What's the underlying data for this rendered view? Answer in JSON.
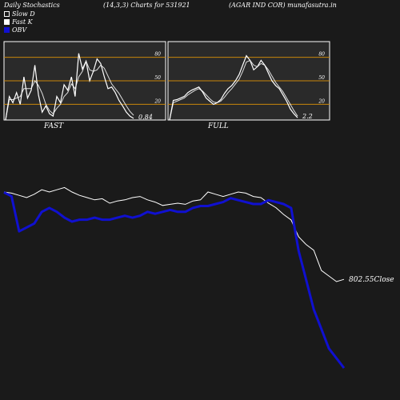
{
  "header": {
    "title": "Daily Stochastics",
    "params": "(14,3,3) Charts for 531921",
    "company_site": "(AGAR IND COR) munafasutra.in"
  },
  "legend": {
    "slow_d": "Slow  D",
    "fast_k": "Fast K",
    "obv": "OBV"
  },
  "colors": {
    "background": "#1a1a1a",
    "stoch_line": "#ffffff",
    "level_line": "#c8860a",
    "obv_line": "#1010d0",
    "close_line": "#ffffff"
  },
  "chart_data": [
    {
      "type": "line",
      "name": "fast-stochastics",
      "panel_label": "FAST",
      "ylim": [
        0,
        100
      ],
      "yticks": [
        20,
        50,
        80
      ],
      "last_value_label": "0.84",
      "series": [
        {
          "name": "Fast K",
          "values": [
            0,
            30,
            22,
            35,
            20,
            55,
            28,
            38,
            70,
            32,
            10,
            18,
            8,
            5,
            30,
            22,
            45,
            38,
            55,
            30,
            85,
            65,
            75,
            50,
            62,
            78,
            72,
            55,
            40,
            42,
            35,
            25,
            18,
            10,
            5,
            2
          ]
        },
        {
          "name": "Slow  D",
          "values": [
            0,
            26,
            26,
            28,
            30,
            40,
            40,
            40,
            50,
            44,
            34,
            20,
            12,
            8,
            15,
            20,
            30,
            35,
            46,
            40,
            55,
            62,
            75,
            64,
            62,
            64,
            70,
            66,
            56,
            46,
            40,
            34,
            26,
            18,
            11,
            6
          ]
        }
      ]
    },
    {
      "type": "line",
      "name": "full-stochastics",
      "panel_label": "FULL",
      "ylim": [
        0,
        100
      ],
      "yticks": [
        20,
        50,
        80
      ],
      "last_value_label": "2.2",
      "series": [
        {
          "name": "Fast K",
          "values": [
            0,
            25,
            26,
            28,
            30,
            35,
            38,
            40,
            42,
            36,
            28,
            24,
            20,
            22,
            26,
            34,
            40,
            44,
            50,
            58,
            70,
            82,
            76,
            64,
            68,
            76,
            70,
            60,
            50,
            44,
            40,
            32,
            24,
            14,
            8,
            3
          ]
        },
        {
          "name": "Slow  D",
          "values": [
            0,
            22,
            24,
            26,
            28,
            32,
            35,
            38,
            40,
            37,
            32,
            27,
            23,
            22,
            24,
            29,
            35,
            40,
            46,
            52,
            62,
            74,
            76,
            70,
            68,
            72,
            70,
            64,
            56,
            48,
            42,
            36,
            28,
            20,
            12,
            5
          ]
        }
      ]
    },
    {
      "type": "line",
      "name": "price-and-obv",
      "close_label": "802.55Close",
      "series": [
        {
          "name": "Close",
          "values": [
            0.8,
            0.79,
            0.77,
            0.75,
            0.78,
            0.82,
            0.8,
            0.82,
            0.84,
            0.8,
            0.77,
            0.75,
            0.73,
            0.74,
            0.7,
            0.72,
            0.73,
            0.75,
            0.76,
            0.73,
            0.71,
            0.68,
            0.69,
            0.7,
            0.69,
            0.72,
            0.73,
            0.8,
            0.78,
            0.76,
            0.78,
            0.8,
            0.79,
            0.76,
            0.75,
            0.7,
            0.66,
            0.6,
            0.55,
            0.4,
            0.33,
            0.28,
            0.1,
            0.05,
            0.0,
            0.02
          ]
        },
        {
          "name": "OBV",
          "values": [
            0.9,
            0.88,
            0.7,
            0.72,
            0.74,
            0.8,
            0.82,
            0.8,
            0.77,
            0.75,
            0.76,
            0.76,
            0.77,
            0.76,
            0.76,
            0.77,
            0.78,
            0.77,
            0.78,
            0.8,
            0.79,
            0.8,
            0.81,
            0.8,
            0.8,
            0.82,
            0.83,
            0.83,
            0.84,
            0.85,
            0.87,
            0.86,
            0.85,
            0.84,
            0.84,
            0.86,
            0.85,
            0.84,
            0.82,
            0.6,
            0.45,
            0.3,
            0.2,
            0.1,
            0.05,
            0.0
          ]
        }
      ]
    }
  ]
}
